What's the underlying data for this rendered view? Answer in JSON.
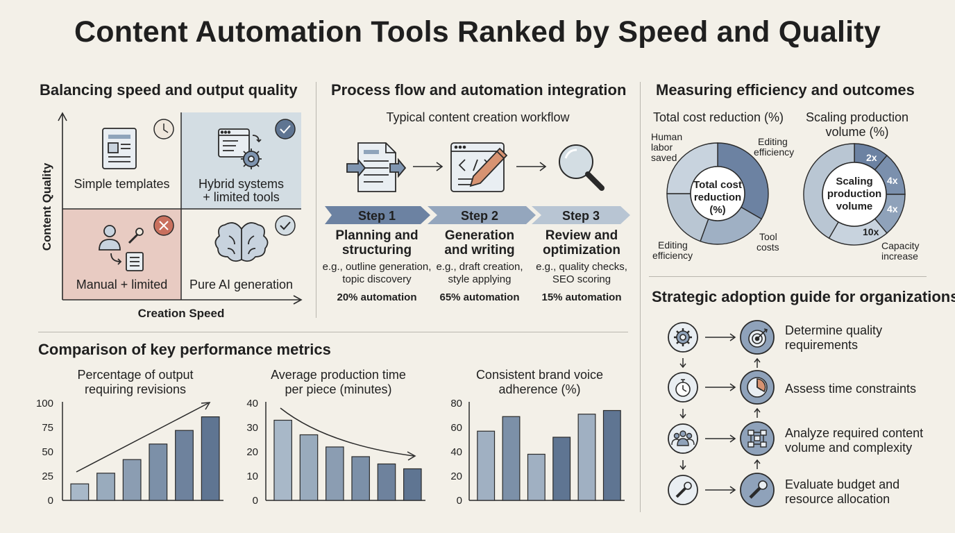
{
  "title": "Content Automation Tools Ranked by Speed and Quality",
  "quadrant": {
    "heading": "Balancing speed and output quality",
    "y_axis": "Content Quality",
    "x_axis": "Creation Speed",
    "cells": [
      {
        "label": "Simple templates",
        "badge": "clock-icon",
        "color": "#f3f0e8"
      },
      {
        "label_line1": "Hybrid systems",
        "label_line2": "+ limited tools",
        "badge": "check-icon",
        "color": "#d3dde3"
      },
      {
        "label": "Manual + limited",
        "badge": "x-icon",
        "color": "#e8cbc2"
      },
      {
        "label": "Pure AI generation",
        "badge": "check-icon",
        "color": "#f3f0e8"
      }
    ]
  },
  "process": {
    "heading": "Process flow and automation integration",
    "subheading": "Typical content creation workflow",
    "steps": [
      {
        "step": "Step 1",
        "title_line1": "Planning and",
        "title_line2": "structuring",
        "ex_line1": "e.g., outline generation,",
        "ex_line2": "topic discovery",
        "automation": "20% automation"
      },
      {
        "step": "Step 2",
        "title_line1": "Generation",
        "title_line2": "and writing",
        "ex_line1": "e.g., draft creation,",
        "ex_line2": "style applying",
        "automation": "65% automation"
      },
      {
        "step": "Step 3",
        "title_line1": "Review and",
        "title_line2": "optimization",
        "ex_line1": "e.g., quality checks,",
        "ex_line2": "SEO scoring",
        "automation": "15% automation"
      }
    ]
  },
  "efficiency": {
    "heading": "Measuring efficiency and outcomes",
    "cost": {
      "title": "Total cost reduction (%)",
      "center_line1": "Total cost",
      "center_line2": "reduction",
      "center_line3": "(%)",
      "labels": {
        "human_line1": "Human",
        "human_line2": "labor",
        "human_line3": "saved",
        "edit_top_line1": "Editing",
        "edit_top_line2": "efficiency",
        "tool_line1": "Tool",
        "tool_line2": "costs",
        "edit_bottom_line1": "Editing",
        "edit_bottom_line2": "efficiency"
      }
    },
    "scaling": {
      "title_line1": "Scaling production",
      "title_line2": "volume (%)",
      "center_line1": "Scaling",
      "center_line2": "production",
      "center_line3": "volume",
      "segment_labels": [
        "2x",
        "4x",
        "4x",
        "10x"
      ],
      "side_line1": "Capacity",
      "side_line2": "increase"
    }
  },
  "metrics": {
    "heading": "Comparison of key performance metrics",
    "charts": [
      {
        "title_line1": "Percentage of output",
        "title_line2": "requiring revisions",
        "type": "bar",
        "ylim": [
          0,
          100
        ],
        "ticks": [
          "0",
          "25",
          "50",
          "75",
          "100"
        ],
        "values": [
          17,
          28,
          42,
          58,
          72,
          86
        ],
        "trend": "up"
      },
      {
        "title_line1": "Average production time",
        "title_line2": "per piece (minutes)",
        "type": "bar",
        "ylim": [
          0,
          40
        ],
        "ticks": [
          "0",
          "10",
          "20",
          "30",
          "40"
        ],
        "values": [
          33,
          27,
          22,
          18,
          15,
          13
        ],
        "trend": "down"
      },
      {
        "title_line1": "Consistent brand voice",
        "title_line2": "adherence (%)",
        "type": "bar",
        "ylim": [
          0,
          80
        ],
        "ticks": [
          "0",
          "20",
          "40",
          "60",
          "80"
        ],
        "values": [
          57,
          69,
          38,
          52,
          71,
          74
        ],
        "trend": "none"
      }
    ]
  },
  "chart_data": [
    {
      "type": "bar",
      "title": "Percentage of output requiring revisions",
      "categories": [
        "",
        "",
        "",
        "",
        "",
        ""
      ],
      "values": [
        17,
        28,
        42,
        58,
        72,
        86
      ],
      "ylim": [
        0,
        100
      ]
    },
    {
      "type": "bar",
      "title": "Average production time per piece (minutes)",
      "categories": [
        "",
        "",
        "",
        "",
        "",
        ""
      ],
      "values": [
        33,
        27,
        22,
        18,
        15,
        13
      ],
      "ylim": [
        0,
        40
      ]
    },
    {
      "type": "bar",
      "title": "Consistent brand voice adherence (%)",
      "categories": [
        "",
        "",
        "",
        "",
        "",
        ""
      ],
      "values": [
        57,
        69,
        38,
        52,
        71,
        74
      ],
      "ylim": [
        0,
        80
      ]
    }
  ],
  "guide": {
    "heading": "Strategic adoption guide for organizations",
    "rows": [
      {
        "left_icon": "gear-icon",
        "right_icon": "target-icon",
        "line1": "Determine quality",
        "line2": "requirements"
      },
      {
        "left_icon": "stopwatch-icon",
        "right_icon": "clock-icon",
        "line1": "Assess time constraints",
        "line2": ""
      },
      {
        "left_icon": "team-icon",
        "right_icon": "flowchart-icon",
        "line1": "Analyze required content",
        "line2": "volume and complexity"
      },
      {
        "left_icon": "wrench-icon",
        "right_icon": "wrench-icon",
        "line1": "Evaluate budget and",
        "line2": "resource allocation"
      }
    ]
  },
  "colors": {
    "bar_light": "#a8b8c8",
    "bar_dark": "#5f7592",
    "ink": "#1f1f1f",
    "arrow_band": "#8094b0"
  }
}
